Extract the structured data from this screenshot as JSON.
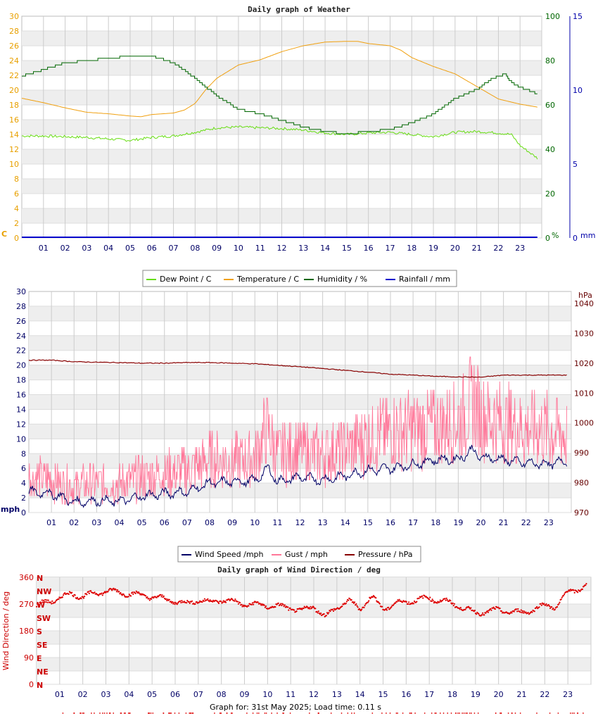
{
  "footer": "Graph for: 31st May 2025; Load time: 0.11 s",
  "chart_data": [
    {
      "type": "line",
      "title": "Daily graph of Weather",
      "x_ticks": [
        "01",
        "02",
        "03",
        "04",
        "05",
        "06",
        "07",
        "08",
        "09",
        "10",
        "11",
        "12",
        "13",
        "14",
        "15",
        "16",
        "17",
        "18",
        "19",
        "20",
        "21",
        "22",
        "23"
      ],
      "left_axis": {
        "unit": "C",
        "ticks": [
          0,
          2,
          4,
          6,
          8,
          10,
          12,
          14,
          16,
          18,
          20,
          22,
          24,
          26,
          28,
          30
        ],
        "range": [
          0,
          30
        ],
        "color": "#e8a000"
      },
      "right_axis_humidity": {
        "unit": "%",
        "ticks": [
          0,
          20,
          40,
          60,
          80,
          100
        ],
        "range": [
          0,
          100
        ],
        "color": "#006600"
      },
      "right_axis_rain": {
        "unit": "mm",
        "ticks": [
          0,
          5,
          10,
          15
        ],
        "range": [
          0,
          15
        ],
        "color": "#0000aa"
      },
      "grid": true,
      "legend_position": "bottom",
      "series": [
        {
          "name": "Dew Point / C",
          "color": "#66dd11",
          "axis": "left",
          "x": [
            0,
            1,
            2,
            3,
            4,
            5,
            6,
            7,
            8,
            9,
            10,
            11,
            12,
            13,
            14,
            15,
            16,
            17,
            18,
            19,
            20,
            21,
            22,
            22.6,
            23,
            23.8
          ],
          "y": [
            13.8,
            13.8,
            13.7,
            13.6,
            13.4,
            13.2,
            13.6,
            13.8,
            14.3,
            14.9,
            15.0,
            14.9,
            14.8,
            14.6,
            14.2,
            14.0,
            14.2,
            14.3,
            14.0,
            13.7,
            14.3,
            14.4,
            14.2,
            14.0,
            12.5,
            10.8
          ]
        },
        {
          "name": "Temperature / C",
          "color": "#f0a010",
          "axis": "left",
          "x": [
            0,
            1,
            2,
            3,
            4,
            5,
            5.5,
            6,
            7,
            7.5,
            8,
            8.5,
            9,
            10,
            11,
            12,
            13,
            14,
            15,
            15.5,
            16,
            17,
            17.5,
            18,
            19,
            20,
            21,
            22,
            23,
            23.8
          ],
          "y": [
            18.9,
            18.3,
            17.6,
            17.0,
            16.8,
            16.5,
            16.4,
            16.7,
            16.9,
            17.3,
            18.2,
            20.1,
            21.6,
            23.4,
            24.1,
            25.2,
            26.0,
            26.5,
            26.6,
            26.6,
            26.3,
            26.0,
            25.4,
            24.4,
            23.2,
            22.2,
            20.5,
            18.8,
            18.1,
            17.7
          ]
        },
        {
          "name": "Humidity / %",
          "color": "#006600",
          "axis": "right_humidity",
          "x": [
            0,
            1,
            2,
            3,
            4,
            5,
            6,
            7,
            8,
            9,
            10,
            11,
            12,
            13,
            14,
            15,
            16,
            17,
            18,
            19,
            20,
            21,
            21.7,
            22.3,
            22.6,
            23,
            23.8
          ],
          "y": [
            73,
            76,
            79,
            80,
            81,
            82,
            82,
            79,
            72,
            64,
            58,
            56,
            53,
            50,
            48,
            47,
            48,
            49,
            52,
            56,
            63,
            67,
            72,
            74,
            70,
            68,
            65
          ]
        },
        {
          "name": "Rainfall / mm",
          "color": "#0000cc",
          "axis": "right_rain",
          "x": [
            0,
            23.8
          ],
          "y": [
            0,
            0
          ]
        }
      ]
    },
    {
      "type": "line",
      "title": "",
      "x_ticks": [
        "01",
        "02",
        "03",
        "04",
        "05",
        "06",
        "07",
        "08",
        "09",
        "10",
        "11",
        "12",
        "13",
        "14",
        "15",
        "16",
        "17",
        "18",
        "19",
        "20",
        "21",
        "22",
        "23"
      ],
      "left_axis": {
        "unit": "mph",
        "ticks": [
          0,
          2,
          4,
          6,
          8,
          10,
          12,
          14,
          16,
          18,
          20,
          22,
          24,
          26,
          28,
          30
        ],
        "range": [
          0,
          30
        ],
        "color": "#000066"
      },
      "right_axis": {
        "unit": "hPa",
        "ticks": [
          970,
          980,
          990,
          1000,
          1010,
          1020,
          1030,
          1040
        ],
        "range": [
          970,
          1044
        ],
        "color": "#660000"
      },
      "grid": true,
      "legend_position": "bottom",
      "series": [
        {
          "name": "Wind Speed /mph",
          "color": "#000066",
          "axis": "left",
          "x": [
            0,
            1,
            2,
            3,
            4,
            5,
            6,
            7,
            8,
            9,
            10,
            10.6,
            11,
            12,
            13,
            14,
            15,
            16,
            17,
            18,
            19,
            19.6,
            20,
            21,
            22,
            23,
            23.8
          ],
          "y": [
            2.8,
            2.6,
            1.4,
            1.6,
            1.5,
            2.2,
            2.6,
            2.8,
            4.0,
            4.2,
            4.3,
            6.0,
            4.2,
            4.8,
            4.4,
            5.0,
            5.7,
            6.0,
            6.5,
            7.2,
            7.2,
            8.5,
            7.5,
            7.2,
            6.7,
            6.6,
            7.0
          ]
        },
        {
          "name": "Gust / mph",
          "color": "#ff7799",
          "axis": "left",
          "x": [
            0,
            1,
            2,
            3,
            4,
            5,
            6,
            7,
            8,
            9,
            10,
            10.5,
            11,
            12,
            13,
            14,
            15,
            16,
            17,
            18,
            19,
            19.7,
            20,
            21,
            22,
            23,
            23.8
          ],
          "y": [
            4.5,
            4.2,
            3.3,
            3.8,
            3.6,
            4.5,
            5.0,
            5.3,
            6.8,
            6.6,
            7.0,
            11.0,
            7.5,
            8.0,
            7.5,
            8.0,
            9.5,
            10.5,
            10.8,
            11.0,
            12.0,
            14.5,
            12.5,
            11.5,
            10.8,
            10.5,
            10.0
          ]
        },
        {
          "name": "Pressure / hPa",
          "color": "#880000",
          "axis": "right",
          "x": [
            0,
            1,
            2,
            3,
            4,
            5,
            6,
            7,
            8,
            9,
            10,
            11,
            12,
            13,
            14,
            15,
            16,
            17,
            18,
            19,
            20,
            21,
            22,
            23,
            23.8
          ],
          "y": [
            1021,
            1021,
            1020.5,
            1020.3,
            1020.2,
            1020,
            1020,
            1020.2,
            1020.2,
            1020,
            1019.8,
            1019.3,
            1018.8,
            1018.2,
            1017.6,
            1017,
            1016.3,
            1016,
            1015.6,
            1015.4,
            1015.3,
            1016,
            1016,
            1016,
            1016
          ]
        }
      ]
    },
    {
      "type": "scatter",
      "title": "Daily graph of Wind Direction / deg",
      "x_ticks": [
        "01",
        "02",
        "03",
        "04",
        "05",
        "06",
        "07",
        "08",
        "09",
        "10",
        "11",
        "12",
        "13",
        "14",
        "15",
        "16",
        "17",
        "18",
        "19",
        "20",
        "21",
        "22",
        "23"
      ],
      "ylabel": "Wind Direction / deg",
      "left_axis": {
        "ticks": [
          0,
          90,
          180,
          270,
          360
        ],
        "range": [
          0,
          360
        ],
        "color": "#cc0000"
      },
      "compass_labels": [
        "N",
        "NW",
        "W",
        "SW",
        "S",
        "SE",
        "E",
        "NE",
        "N"
      ],
      "grid": true,
      "series": [
        {
          "name": "Wind Direction",
          "color": "#dd0000",
          "x": [
            0,
            1,
            1.5,
            2,
            3,
            3.5,
            4,
            5,
            6,
            6.5,
            7,
            7.5,
            8,
            9,
            10,
            11,
            11.5,
            12,
            12.5,
            13,
            13.5,
            14,
            14.5,
            15,
            15.5,
            16,
            17,
            18,
            19,
            20,
            21,
            22,
            22.5,
            23,
            23.8
          ],
          "y": [
            265,
            290,
            305,
            295,
            315,
            310,
            305,
            295,
            280,
            270,
            285,
            275,
            285,
            270,
            265,
            258,
            245,
            265,
            225,
            260,
            280,
            255,
            295,
            255,
            270,
            278,
            290,
            272,
            240,
            250,
            240,
            265,
            262,
            310,
            330
          ]
        }
      ]
    }
  ]
}
